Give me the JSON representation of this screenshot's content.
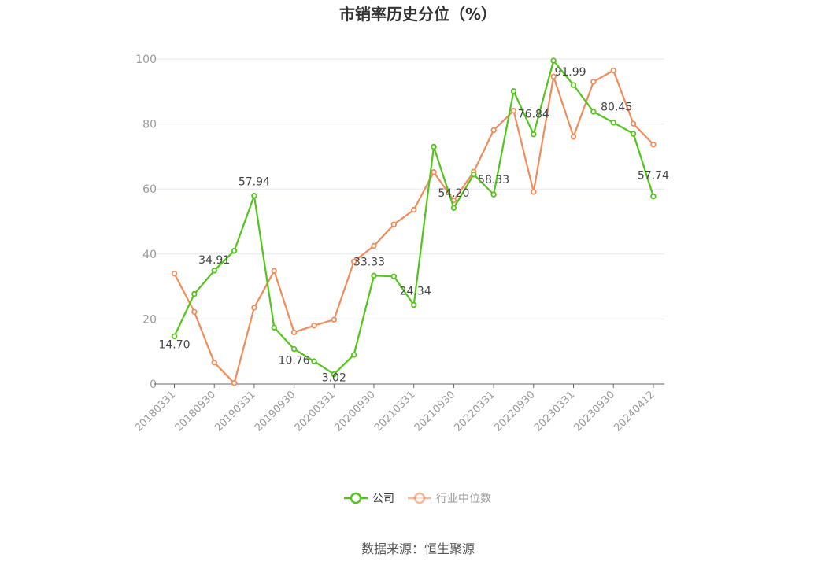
{
  "chart_data": {
    "type": "line",
    "title": "市销率历史分位（%）",
    "x": [
      "20180331",
      "20180630",
      "20180930",
      "20181231",
      "20190331",
      "20190630",
      "20190930",
      "20191231",
      "20200331",
      "20200630",
      "20200930",
      "20201231",
      "20210331",
      "20210630",
      "20210930",
      "20211231",
      "20220331",
      "20220630",
      "20220930",
      "20221231",
      "20230331",
      "20230630",
      "20230930",
      "20231231",
      "20240412"
    ],
    "xtick_labels": [
      "20180331",
      "20180930",
      "20190331",
      "20190930",
      "20200331",
      "20200930",
      "20210331",
      "20210930",
      "20220331",
      "20220930",
      "20230331",
      "20230930",
      "20240412"
    ],
    "yticks": [
      0,
      20,
      40,
      60,
      80,
      100
    ],
    "ylim": [
      0,
      100
    ],
    "grid": true,
    "legend_position": "bottom",
    "series": [
      {
        "name": "公司",
        "color": "#52c41a",
        "values": [
          14.7,
          27.7,
          34.91,
          41.0,
          57.94,
          17.4,
          10.76,
          7.0,
          3.02,
          9.0,
          33.33,
          33.1,
          24.34,
          73.0,
          54.2,
          64.5,
          58.33,
          90.1,
          76.84,
          99.5,
          91.99,
          83.8,
          80.45,
          77.0,
          57.74
        ],
        "labels": [
          "14.70",
          "",
          "34.91",
          "",
          "57.94",
          "",
          "10.76",
          "",
          "3.02",
          "",
          "33.33",
          "",
          "24.34",
          "",
          "54.20",
          "",
          "58.33",
          "",
          "76.84",
          "",
          "91.99",
          "",
          "80.45",
          "",
          "57.74"
        ]
      },
      {
        "name": "行业中位数",
        "color": "#f08c5a",
        "values": [
          34.0,
          22.2,
          6.6,
          0.3,
          23.5,
          34.8,
          15.9,
          18.0,
          19.8,
          37.7,
          42.5,
          49.1,
          53.6,
          65.2,
          56.5,
          65.3,
          78.1,
          84.1,
          59.1,
          94.6,
          76.1,
          93.0,
          96.5,
          80.1,
          73.7
        ]
      }
    ]
  },
  "source": "数据来源：恒生聚源"
}
